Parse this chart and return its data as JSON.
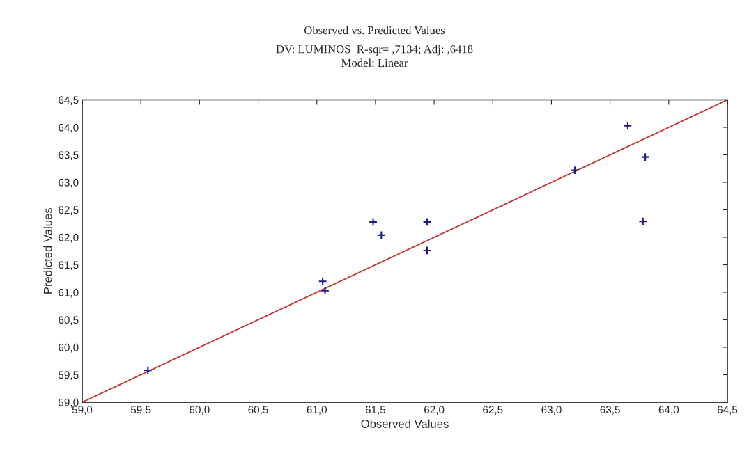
{
  "chart_data": {
    "type": "scatter",
    "title": "Observed vs. Predicted Values",
    "subtitle": "DV: LUMINOS  R-sqr= ,7134; Adj: ,6418\nModel: Linear",
    "xlabel": "Observed Values",
    "ylabel": "Predicted Values",
    "series": [
      {
        "color": "#1a1a8c",
        "marker": "cross",
        "x": [
          59.56,
          61.05,
          61.07,
          61.48,
          61.55,
          61.94,
          61.94,
          63.2,
          63.65,
          63.8,
          63.78
        ],
        "values": [
          59.58,
          61.2,
          61.03,
          62.28,
          62.04,
          62.28,
          61.76,
          63.22,
          64.03,
          63.46,
          62.29
        ]
      },
      {
        "type": "line",
        "color": "#c83232",
        "line_style": "solid",
        "x": [
          59.0,
          64.5
        ],
        "values": [
          59.0,
          64.5
        ]
      }
    ],
    "xlim": [
      59.0,
      64.5
    ],
    "ylim": [
      59.0,
      64.5
    ],
    "xticks": [
      {
        "value": 59.0,
        "label": "59,0"
      },
      {
        "value": 59.5,
        "label": "59,5"
      },
      {
        "value": 60.0,
        "label": "60,0"
      },
      {
        "value": 60.5,
        "label": "60,5"
      },
      {
        "value": 61.0,
        "label": "61,0"
      },
      {
        "value": 61.5,
        "label": "61,5"
      },
      {
        "value": 62.0,
        "label": "62,0"
      },
      {
        "value": 62.5,
        "label": "62,5"
      },
      {
        "value": 63.0,
        "label": "63,0"
      },
      {
        "value": 63.5,
        "label": "63,5"
      },
      {
        "value": 64.0,
        "label": "64,0"
      },
      {
        "value": 64.5,
        "label": "64,5"
      }
    ],
    "yticks": [
      {
        "value": 59.0,
        "label": "59,0"
      },
      {
        "value": 59.5,
        "label": "59,5"
      },
      {
        "value": 60.0,
        "label": "60,0"
      },
      {
        "value": 60.5,
        "label": "60,5"
      },
      {
        "value": 61.0,
        "label": "61,0"
      },
      {
        "value": 61.5,
        "label": "61,5"
      },
      {
        "value": 62.0,
        "label": "62,0"
      },
      {
        "value": 62.5,
        "label": "62,5"
      },
      {
        "value": 63.0,
        "label": "63,0"
      },
      {
        "value": 63.5,
        "label": "63,5"
      },
      {
        "value": 64.0,
        "label": "64,0"
      },
      {
        "value": 64.5,
        "label": "64,5"
      }
    ],
    "grid": false,
    "legend": false
  }
}
